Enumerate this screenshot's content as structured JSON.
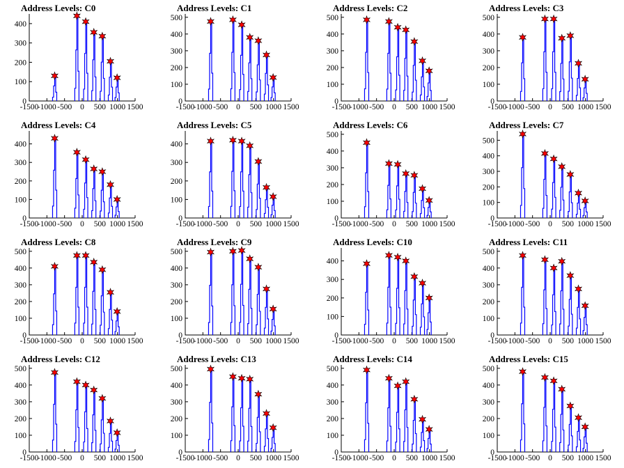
{
  "chart_data": [
    {
      "type": "histogram",
      "title": "Address Levels: C0",
      "xlim": [
        -1500,
        1500
      ],
      "ylim": [
        0,
        450
      ],
      "xticks": [
        "-1500",
        "-1000",
        "-500",
        "0",
        "500",
        "1000",
        "1500"
      ],
      "yticks": [
        "0",
        "100",
        "200",
        "300",
        "400"
      ],
      "peaks": [
        {
          "x": -780,
          "y": 130
        },
        {
          "x": -150,
          "y": 440
        },
        {
          "x": 100,
          "y": 410
        },
        {
          "x": 330,
          "y": 355
        },
        {
          "x": 570,
          "y": 335
        },
        {
          "x": 800,
          "y": 205
        },
        {
          "x": 990,
          "y": 120
        }
      ]
    },
    {
      "type": "histogram",
      "title": "Address Levels: C1",
      "xlim": [
        -1500,
        1500
      ],
      "ylim": [
        0,
        520
      ],
      "xticks": [
        "-1500",
        "-1000",
        "-500",
        "0",
        "500",
        "1000",
        "1500"
      ],
      "yticks": [
        "0",
        "100",
        "200",
        "300",
        "400",
        "500"
      ],
      "peaks": [
        {
          "x": -780,
          "y": 475
        },
        {
          "x": -150,
          "y": 485
        },
        {
          "x": 100,
          "y": 455
        },
        {
          "x": 330,
          "y": 380
        },
        {
          "x": 570,
          "y": 360
        },
        {
          "x": 800,
          "y": 275
        },
        {
          "x": 990,
          "y": 140
        }
      ]
    },
    {
      "type": "histogram",
      "title": "Address Levels: C2",
      "xlim": [
        -1500,
        1500
      ],
      "ylim": [
        0,
        520
      ],
      "xticks": [
        "-1500",
        "-1000",
        "-500",
        "0",
        "500",
        "1000",
        "1500"
      ],
      "yticks": [
        "0",
        "100",
        "200",
        "300",
        "400",
        "500"
      ],
      "peaks": [
        {
          "x": -780,
          "y": 485
        },
        {
          "x": -150,
          "y": 475
        },
        {
          "x": 100,
          "y": 440
        },
        {
          "x": 330,
          "y": 425
        },
        {
          "x": 570,
          "y": 355
        },
        {
          "x": 800,
          "y": 240
        },
        {
          "x": 990,
          "y": 180
        }
      ]
    },
    {
      "type": "histogram",
      "title": "Address Levels: C3",
      "xlim": [
        -1500,
        1500
      ],
      "ylim": [
        0,
        520
      ],
      "xticks": [
        "-1500",
        "-1000",
        "-500",
        "0",
        "500",
        "1000",
        "1500"
      ],
      "yticks": [
        "0",
        "100",
        "200",
        "300",
        "400",
        "500"
      ],
      "peaks": [
        {
          "x": -780,
          "y": 380
        },
        {
          "x": -150,
          "y": 490
        },
        {
          "x": 100,
          "y": 490
        },
        {
          "x": 330,
          "y": 375
        },
        {
          "x": 570,
          "y": 390
        },
        {
          "x": 800,
          "y": 225
        },
        {
          "x": 990,
          "y": 130
        }
      ]
    },
    {
      "type": "histogram",
      "title": "Address Levels: C4",
      "xlim": [
        -1500,
        1500
      ],
      "ylim": [
        0,
        470
      ],
      "xticks": [
        "-1500",
        "-1000",
        "-500",
        "0",
        "500",
        "1000",
        "1500"
      ],
      "yticks": [
        "0",
        "100",
        "200",
        "300",
        "400"
      ],
      "peaks": [
        {
          "x": -780,
          "y": 430
        },
        {
          "x": -150,
          "y": 355
        },
        {
          "x": 100,
          "y": 315
        },
        {
          "x": 330,
          "y": 265
        },
        {
          "x": 570,
          "y": 250
        },
        {
          "x": 800,
          "y": 180
        },
        {
          "x": 990,
          "y": 100
        }
      ]
    },
    {
      "type": "histogram",
      "title": "Address Levels: C5",
      "xlim": [
        -1500,
        1500
      ],
      "ylim": [
        0,
        470
      ],
      "xticks": [
        "-1500",
        "-1000",
        "-500",
        "0",
        "500",
        "1000",
        "1500"
      ],
      "yticks": [
        "0",
        "100",
        "200",
        "300",
        "400"
      ],
      "peaks": [
        {
          "x": -780,
          "y": 415
        },
        {
          "x": -150,
          "y": 420
        },
        {
          "x": 100,
          "y": 415
        },
        {
          "x": 330,
          "y": 390
        },
        {
          "x": 570,
          "y": 305
        },
        {
          "x": 800,
          "y": 165
        },
        {
          "x": 990,
          "y": 115
        }
      ]
    },
    {
      "type": "histogram",
      "title": "Address Levels: C6",
      "xlim": [
        -1500,
        1500
      ],
      "ylim": [
        0,
        520
      ],
      "xticks": [
        "-1500",
        "-1000",
        "-500",
        "0",
        "500",
        "1000",
        "1500"
      ],
      "yticks": [
        "0",
        "100",
        "200",
        "300",
        "400",
        "500"
      ],
      "peaks": [
        {
          "x": -780,
          "y": 450
        },
        {
          "x": -150,
          "y": 325
        },
        {
          "x": 100,
          "y": 320
        },
        {
          "x": 330,
          "y": 265
        },
        {
          "x": 570,
          "y": 255
        },
        {
          "x": 800,
          "y": 175
        },
        {
          "x": 990,
          "y": 105
        }
      ]
    },
    {
      "type": "histogram",
      "title": "Address Levels: C7",
      "xlim": [
        -1500,
        1500
      ],
      "ylim": [
        0,
        560
      ],
      "xticks": [
        "-1500",
        "-1000",
        "-500",
        "0",
        "500",
        "1000",
        "1500"
      ],
      "yticks": [
        "0",
        "100",
        "200",
        "300",
        "400",
        "500"
      ],
      "peaks": [
        {
          "x": -780,
          "y": 540
        },
        {
          "x": -150,
          "y": 415
        },
        {
          "x": 100,
          "y": 380
        },
        {
          "x": 330,
          "y": 330
        },
        {
          "x": 570,
          "y": 280
        },
        {
          "x": 800,
          "y": 160
        },
        {
          "x": 990,
          "y": 110
        }
      ]
    },
    {
      "type": "histogram",
      "title": "Address Levels: C8",
      "xlim": [
        -1500,
        1500
      ],
      "ylim": [
        0,
        520
      ],
      "xticks": [
        "-1500",
        "-1000",
        "-500",
        "0",
        "500",
        "1000",
        "1500"
      ],
      "yticks": [
        "0",
        "100",
        "200",
        "300",
        "400",
        "500"
      ],
      "peaks": [
        {
          "x": -780,
          "y": 410
        },
        {
          "x": -150,
          "y": 475
        },
        {
          "x": 100,
          "y": 475
        },
        {
          "x": 330,
          "y": 435
        },
        {
          "x": 570,
          "y": 390
        },
        {
          "x": 800,
          "y": 255
        },
        {
          "x": 990,
          "y": 140
        }
      ]
    },
    {
      "type": "histogram",
      "title": "Address Levels: C9",
      "xlim": [
        -1500,
        1500
      ],
      "ylim": [
        0,
        520
      ],
      "xticks": [
        "-1500",
        "-1000",
        "-500",
        "0",
        "500",
        "1000",
        "1500"
      ],
      "yticks": [
        "0",
        "100",
        "200",
        "300",
        "400",
        "500"
      ],
      "peaks": [
        {
          "x": -780,
          "y": 495
        },
        {
          "x": -150,
          "y": 500
        },
        {
          "x": 100,
          "y": 505
        },
        {
          "x": 330,
          "y": 455
        },
        {
          "x": 570,
          "y": 405
        },
        {
          "x": 800,
          "y": 275
        },
        {
          "x": 990,
          "y": 155
        }
      ]
    },
    {
      "type": "histogram",
      "title": "Address Levels: C10",
      "xlim": [
        -1500,
        1500
      ],
      "ylim": [
        0,
        470
      ],
      "xticks": [
        "-1500",
        "-1000",
        "-500",
        "0",
        "500",
        "1000",
        "1500"
      ],
      "yticks": [
        "0",
        "100",
        "200",
        "300",
        "400"
      ],
      "peaks": [
        {
          "x": -780,
          "y": 385
        },
        {
          "x": -150,
          "y": 430
        },
        {
          "x": 100,
          "y": 420
        },
        {
          "x": 330,
          "y": 400
        },
        {
          "x": 570,
          "y": 315
        },
        {
          "x": 800,
          "y": 280
        },
        {
          "x": 990,
          "y": 200
        }
      ]
    },
    {
      "type": "histogram",
      "title": "Address Levels: C11",
      "xlim": [
        -1500,
        1500
      ],
      "ylim": [
        0,
        520
      ],
      "xticks": [
        "-1500",
        "-1000",
        "-500",
        "0",
        "500",
        "1000",
        "1500"
      ],
      "yticks": [
        "0",
        "100",
        "200",
        "300",
        "400",
        "500"
      ],
      "peaks": [
        {
          "x": -780,
          "y": 475
        },
        {
          "x": -150,
          "y": 450
        },
        {
          "x": 100,
          "y": 400
        },
        {
          "x": 330,
          "y": 440
        },
        {
          "x": 570,
          "y": 355
        },
        {
          "x": 800,
          "y": 275
        },
        {
          "x": 990,
          "y": 175
        }
      ]
    },
    {
      "type": "histogram",
      "title": "Address Levels: C12",
      "xlim": [
        -1500,
        1500
      ],
      "ylim": [
        0,
        520
      ],
      "xticks": [
        "-1500",
        "-1000",
        "-500",
        "0",
        "500",
        "1000",
        "1500"
      ],
      "yticks": [
        "0",
        "100",
        "200",
        "300",
        "400",
        "500"
      ],
      "peaks": [
        {
          "x": -780,
          "y": 475
        },
        {
          "x": -150,
          "y": 420
        },
        {
          "x": 100,
          "y": 400
        },
        {
          "x": 330,
          "y": 370
        },
        {
          "x": 570,
          "y": 320
        },
        {
          "x": 800,
          "y": 185
        },
        {
          "x": 990,
          "y": 115
        }
      ]
    },
    {
      "type": "histogram",
      "title": "Address Levels: C13",
      "xlim": [
        -1500,
        1500
      ],
      "ylim": [
        0,
        520
      ],
      "xticks": [
        "-1500",
        "-1000",
        "-500",
        "0",
        "500",
        "1000",
        "1500"
      ],
      "yticks": [
        "0",
        "100",
        "200",
        "300",
        "400",
        "500"
      ],
      "peaks": [
        {
          "x": -780,
          "y": 495
        },
        {
          "x": -150,
          "y": 450
        },
        {
          "x": 100,
          "y": 440
        },
        {
          "x": 330,
          "y": 435
        },
        {
          "x": 570,
          "y": 345
        },
        {
          "x": 800,
          "y": 230
        },
        {
          "x": 990,
          "y": 145
        }
      ]
    },
    {
      "type": "histogram",
      "title": "Address Levels: C14",
      "xlim": [
        -1500,
        1500
      ],
      "ylim": [
        0,
        520
      ],
      "xticks": [
        "-1500",
        "-1000",
        "-500",
        "0",
        "500",
        "1000",
        "1500"
      ],
      "yticks": [
        "0",
        "100",
        "200",
        "300",
        "400",
        "500"
      ],
      "peaks": [
        {
          "x": -780,
          "y": 490
        },
        {
          "x": -150,
          "y": 440
        },
        {
          "x": 100,
          "y": 395
        },
        {
          "x": 330,
          "y": 420
        },
        {
          "x": 570,
          "y": 315
        },
        {
          "x": 800,
          "y": 195
        },
        {
          "x": 990,
          "y": 135
        }
      ]
    },
    {
      "type": "histogram",
      "title": "Address Levels: C15",
      "xlim": [
        -1500,
        1500
      ],
      "ylim": [
        0,
        520
      ],
      "xticks": [
        "-1500",
        "-1000",
        "-500",
        "0",
        "500",
        "1000",
        "1500"
      ],
      "yticks": [
        "0",
        "100",
        "200",
        "300",
        "400",
        "500"
      ],
      "peaks": [
        {
          "x": -780,
          "y": 480
        },
        {
          "x": -150,
          "y": 445
        },
        {
          "x": 100,
          "y": 425
        },
        {
          "x": 330,
          "y": 375
        },
        {
          "x": 570,
          "y": 275
        },
        {
          "x": 800,
          "y": 205
        },
        {
          "x": 990,
          "y": 150
        }
      ]
    }
  ],
  "colors": {
    "histogram": "#0000ff",
    "peak_marker": "#ff0000",
    "axis": "#000000"
  }
}
